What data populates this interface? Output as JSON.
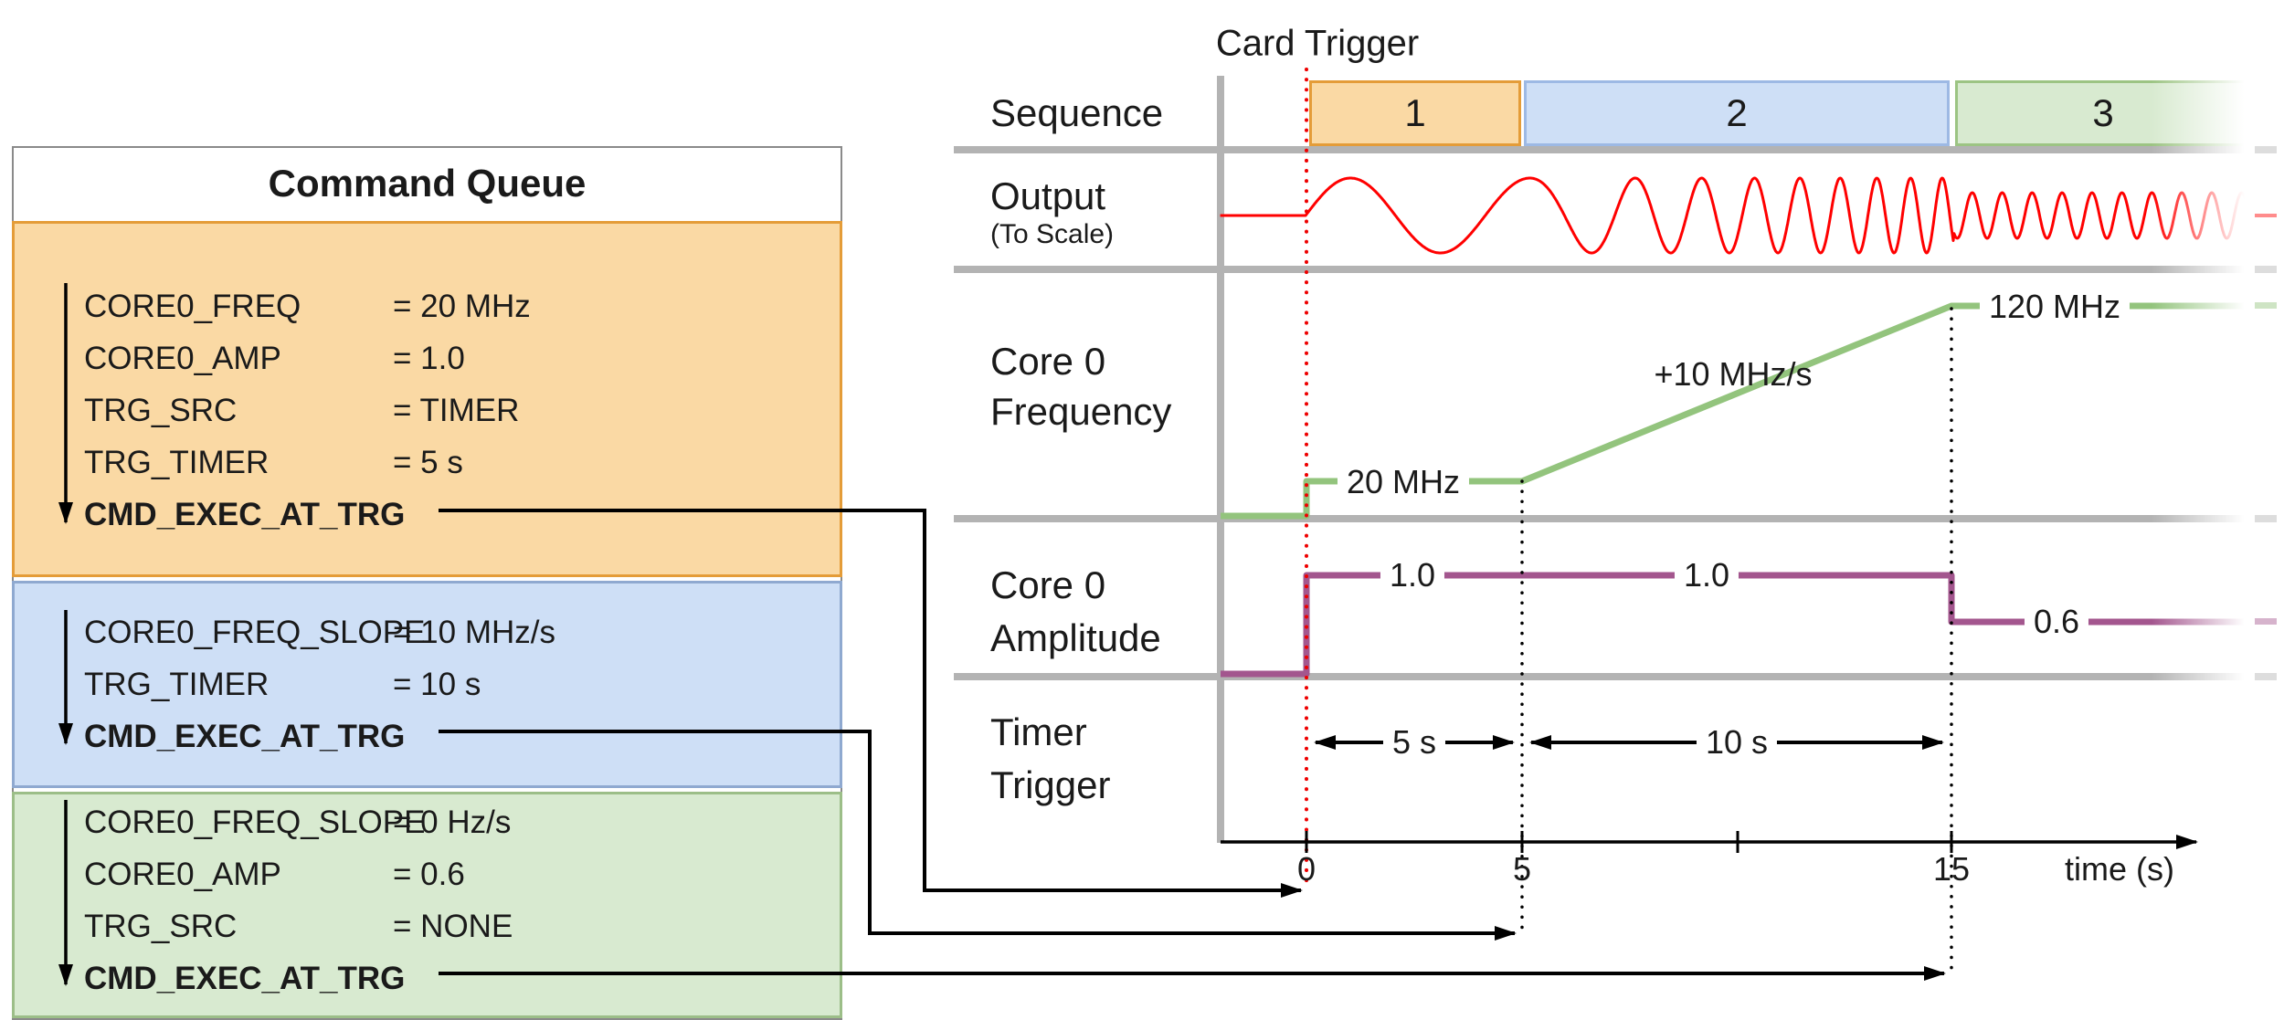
{
  "colors": {
    "orange_fill": "#FAD9A4",
    "orange_border": "#E49C38",
    "blue_fill": "#CEDFF6",
    "blue_border": "#8FA9D0",
    "green_fill": "#D8EAD0",
    "green_border": "#9CBE88",
    "seq1_border": "#E49C38",
    "seq2_border": "#9DB9E4",
    "seq3_border": "#9CC483",
    "gray_bar": "#B3B3B3",
    "wave_red": "#FF0000",
    "freq_green": "#93C47D",
    "amp_purple": "#A3568E",
    "dotted_red": "#EE0000",
    "line_black": "#000000"
  },
  "command_queue": {
    "title": "Command Queue",
    "blocks": [
      {
        "commands": [
          {
            "name": "CORE0_FREQ",
            "value": "= 20 MHz"
          },
          {
            "name": "CORE0_AMP",
            "value": "= 1.0"
          },
          {
            "name": "TRG_SRC",
            "value": "= TIMER"
          },
          {
            "name": "TRG_TIMER",
            "value": "= 5 s"
          },
          {
            "name": "CMD_EXEC_AT_TRG",
            "value": ""
          }
        ]
      },
      {
        "commands": [
          {
            "name": "CORE0_FREQ_SLOPE",
            "value": "= 10 MHz/s"
          },
          {
            "name": "TRG_TIMER",
            "value": "= 10 s"
          },
          {
            "name": "CMD_EXEC_AT_TRG",
            "value": ""
          }
        ]
      },
      {
        "commands": [
          {
            "name": "CORE0_FREQ_SLOPE",
            "value": "= 0 Hz/s"
          },
          {
            "name": "CORE0_AMP",
            "value": "= 0.6"
          },
          {
            "name": "TRG_SRC",
            "value": "= NONE"
          },
          {
            "name": "CMD_EXEC_AT_TRG",
            "value": ""
          }
        ]
      }
    ]
  },
  "timing": {
    "card_trigger": "Card Trigger",
    "sequence_label": "Sequence",
    "sequence_segments": [
      "1",
      "2",
      "3"
    ],
    "output_label": "Output",
    "output_sublabel": "(To Scale)",
    "frequency_label1": "Core 0",
    "frequency_label2": "Frequency",
    "freq_start": "20 MHz",
    "freq_slope": "+10 MHz/s",
    "freq_end": "120 MHz",
    "amplitude_label1": "Core 0",
    "amplitude_label2": "Amplitude",
    "amp_1": "1.0",
    "amp_2": "1.0",
    "amp_3": "0.6",
    "timer_label1": "Timer",
    "timer_label2": "Trigger",
    "interval_1": "5 s",
    "interval_2": "10 s",
    "tick_0": "0",
    "tick_5": "5",
    "tick_15": "15",
    "axis_label": "time (s)"
  }
}
